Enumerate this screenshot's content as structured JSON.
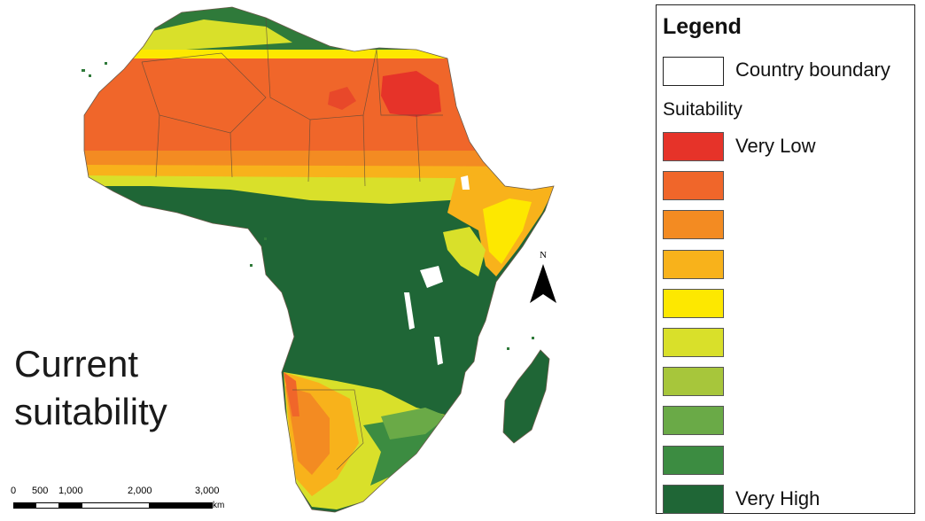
{
  "map": {
    "title_line1": "Current",
    "title_line2": "suitability",
    "north_label": "N",
    "scale": {
      "ticks": [
        "0",
        "500",
        "1,000",
        "2,000",
        "3,000"
      ],
      "unit": "km"
    }
  },
  "legend": {
    "title": "Legend",
    "boundary_label": "Country boundary",
    "suitability_heading": "Suitability",
    "classes": [
      {
        "color": "#e63329",
        "label": "Very Low"
      },
      {
        "color": "#f0662a",
        "label": ""
      },
      {
        "color": "#f38b22",
        "label": ""
      },
      {
        "color": "#f8b21b",
        "label": ""
      },
      {
        "color": "#fde800",
        "label": ""
      },
      {
        "color": "#d9e02a",
        "label": ""
      },
      {
        "color": "#a7c63b",
        "label": ""
      },
      {
        "color": "#6aaa47",
        "label": ""
      },
      {
        "color": "#3c8c41",
        "label": ""
      },
      {
        "color": "#1f6636",
        "label": "Very High"
      }
    ]
  },
  "colors": {
    "very_low": "#e63329",
    "low": "#f0662a",
    "mid_orange": "#f38b22",
    "yellow": "#fde800",
    "light_green": "#a7c63b",
    "very_high": "#1f6636"
  }
}
